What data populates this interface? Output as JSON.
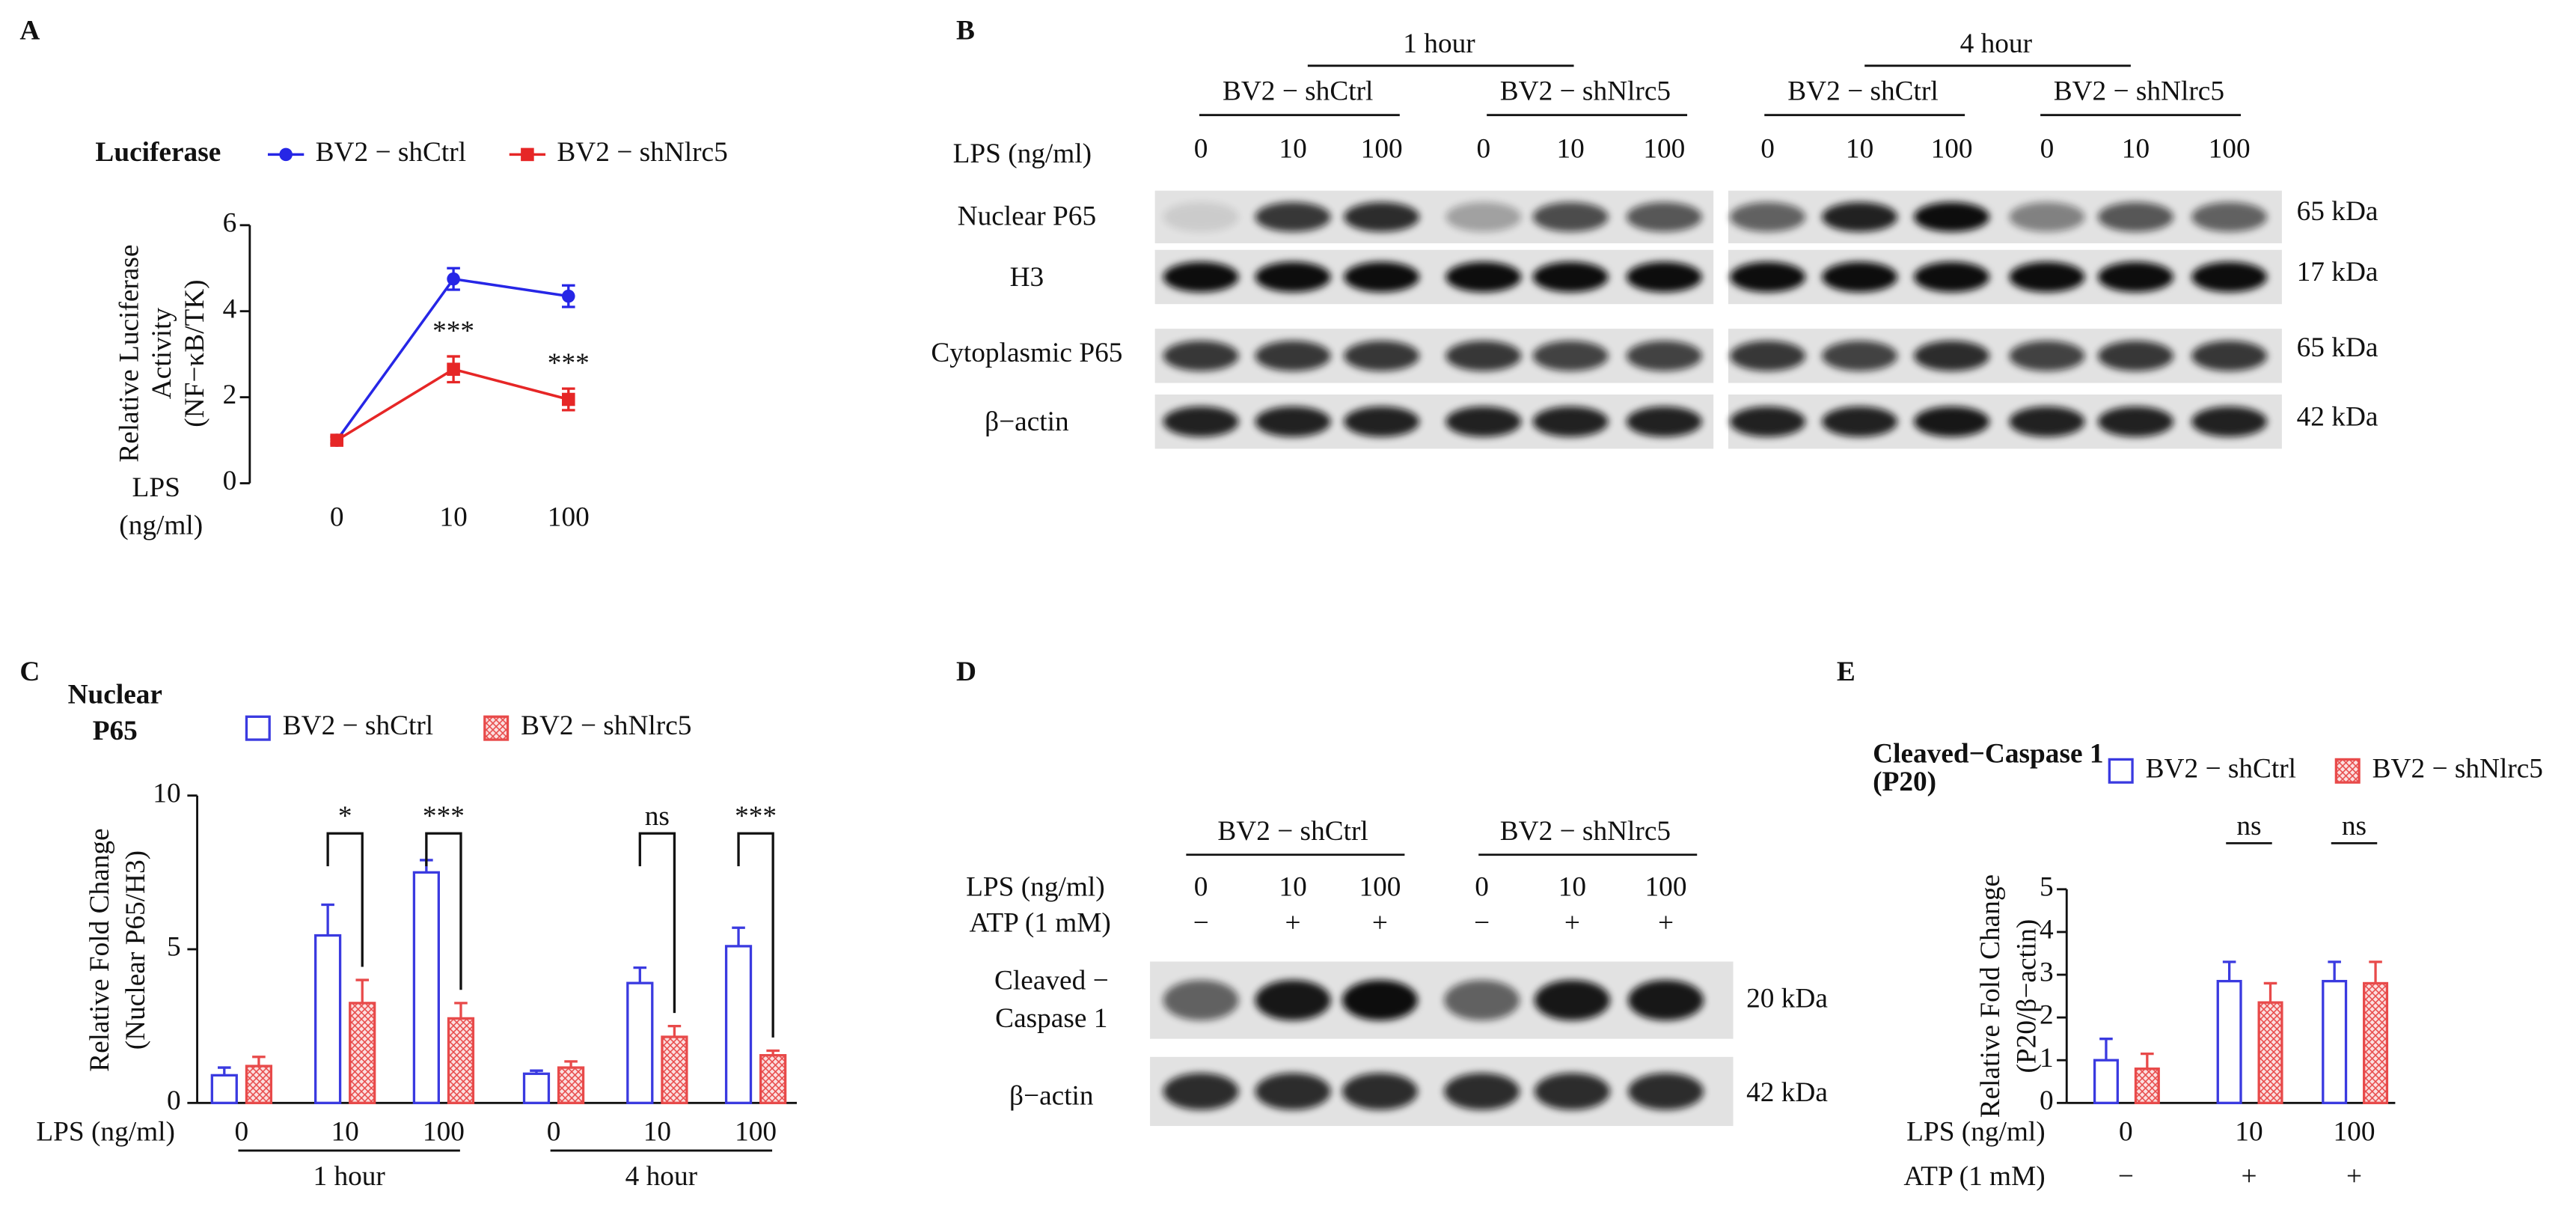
{
  "panel_labels": [
    "A",
    "B",
    "C",
    "D",
    "E"
  ],
  "chart_data": [
    {
      "type": "line",
      "legend_title": "Luciferase",
      "y_label": [
        "Relative Luciferase",
        "Activity",
        "(NF−κB/TK)"
      ],
      "x_label": [
        "LPS",
        "(ng/ml)"
      ],
      "categories": [
        "0",
        "10",
        "100"
      ],
      "series": [
        {
          "name": "BV2 − shCtrl",
          "color": "#2626e6",
          "marker": "circle",
          "values": [
            1,
            4.75,
            4.35
          ],
          "errors": [
            0.08,
            0.25,
            0.25
          ]
        },
        {
          "name": "BV2 − shNlrc5",
          "color": "#e62626",
          "marker": "square",
          "values": [
            1,
            2.65,
            1.95
          ],
          "errors": [
            0.08,
            0.3,
            0.25
          ]
        }
      ],
      "annotations": [
        null,
        "***",
        "***"
      ],
      "ylim": [
        0,
        6
      ],
      "yticks": [
        0,
        2,
        4,
        6
      ]
    },
    {
      "type": "bar",
      "title": [
        "Nuclear",
        "P65"
      ],
      "y_label": [
        "Relative Fold Change",
        "(Nuclear P65/H3)"
      ],
      "x_label": "LPS (ng/ml)",
      "categories": [
        "0",
        "10",
        "100",
        "0",
        "10",
        "100"
      ],
      "group_labels": [
        "1 hour",
        "4 hour"
      ],
      "series": [
        {
          "name": "BV2 − shCtrl",
          "color": "#3a3ae0",
          "hatch": false,
          "values": [
            0.9,
            5.45,
            7.5,
            0.95,
            3.9,
            5.1
          ],
          "errors": [
            0.25,
            1.0,
            0.4,
            0.1,
            0.5,
            0.6
          ]
        },
        {
          "name": "BV2 − shNlrc5",
          "color": "#e84a4a",
          "hatch": true,
          "values": [
            1.2,
            3.25,
            2.75,
            1.15,
            2.15,
            1.55
          ],
          "errors": [
            0.3,
            0.75,
            0.5,
            0.2,
            0.35,
            0.15
          ]
        }
      ],
      "annotations": [
        null,
        "*",
        "***",
        null,
        "ns",
        "***"
      ],
      "ylim": [
        0,
        10
      ],
      "yticks": [
        0,
        5,
        10
      ]
    },
    {
      "type": "bar",
      "title": [
        "Cleaved−Caspase 1",
        "(P20)"
      ],
      "y_label": [
        "Relative Fold Change",
        "(P20/β−actin)"
      ],
      "x_label": "LPS (ng/ml)",
      "categories": [
        "0",
        "10",
        "100"
      ],
      "atp_label": "ATP (1 mM)",
      "atp": [
        "−",
        "+",
        "+"
      ],
      "series": [
        {
          "name": "BV2 − shCtrl",
          "color": "#3a3ae0",
          "hatch": false,
          "values": [
            1.0,
            2.85,
            2.85
          ],
          "errors": [
            0.5,
            0.45,
            0.45
          ]
        },
        {
          "name": "BV2 − shNlrc5",
          "color": "#e84a4a",
          "hatch": true,
          "values": [
            0.8,
            2.35,
            2.8
          ],
          "errors": [
            0.35,
            0.45,
            0.5
          ]
        }
      ],
      "annotations": [
        null,
        "ns",
        "ns"
      ],
      "ylim": [
        0,
        5
      ],
      "yticks": [
        0,
        1,
        2,
        3,
        4,
        5
      ]
    }
  ],
  "blots": [
    {
      "headers": [
        {
          "label": "1 hour",
          "groups": [
            "BV2 − shCtrl",
            "BV2 − shNlrc5"
          ]
        },
        {
          "label": "4 hour",
          "groups": [
            "BV2 − shCtrl",
            "BV2 − shNlrc5"
          ]
        }
      ],
      "lps_label": "LPS (ng/ml)",
      "lps": [
        "0",
        "10",
        "100"
      ],
      "rows": [
        {
          "label": "Nuclear P65",
          "kda": "65 kDa"
        },
        {
          "label": "H3",
          "kda": "17 kDa"
        },
        {
          "label": "Cytoplasmic P65",
          "kda": "65 kDa"
        },
        {
          "label": "β−actin",
          "kda": "42 kDa"
        }
      ]
    },
    {
      "groups": [
        "BV2 − shCtrl",
        "BV2 − shNlrc5"
      ],
      "lps_label": "LPS (ng/ml)",
      "lps": [
        "0",
        "10",
        "100"
      ],
      "atp_label": "ATP (1 mM)",
      "atp": [
        "−",
        "+",
        "+"
      ],
      "rows": [
        {
          "label": [
            "Cleaved −",
            "Caspase 1"
          ],
          "kda": "20 kDa"
        },
        {
          "label": "β−actin",
          "kda": "42 kDa"
        }
      ]
    }
  ]
}
